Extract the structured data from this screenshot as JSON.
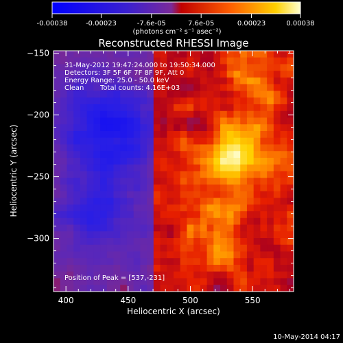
{
  "chart_data": {
    "type": "heatmap",
    "title": "Reconstructed RHESSI Image",
    "xlabel": "Heliocentric X (arcsec)",
    "ylabel": "Heliocentric Y (arcsec)",
    "xlim": [
      390,
      583
    ],
    "ylim": [
      -343,
      -148
    ],
    "x_ticks": [
      400,
      450,
      500,
      550
    ],
    "y_ticks": [
      -150,
      -200,
      -250,
      -300
    ],
    "colorbar": {
      "range": [
        -0.00038,
        0.00038
      ],
      "ticks": [
        "-0.00038",
        "-0.00023",
        "-7.6e-05",
        "7.6e-05",
        "0.00023",
        "0.00038"
      ],
      "tick_values": [
        -0.00038,
        -0.00023,
        -7.6e-05,
        7.6e-05,
        0.00023,
        0.00038
      ],
      "label": "(photons cm⁻² s⁻¹ asec⁻²)"
    },
    "annotations": {
      "time_range": "31-May-2012 19:47:24.000 to 19:50:34.000",
      "detectors": "Detectors: 3F 5F 6F 7F 8F 9F, Att 0",
      "energy_range": "Energy Range: 25.0 - 50.0 keV",
      "clean": "Clean",
      "total_counts": "Total counts: 4.16E+03",
      "peak": "Position of Peak = [537,-231]"
    },
    "peak_position": [
      537,
      -231
    ],
    "palette_colors": [
      "#0000ff",
      "#5a1ab4",
      "#7a2a9a",
      "#ff0000",
      "#ff8c00",
      "#ffff00",
      "#ffffff"
    ]
  },
  "footer": {
    "date": "10-May-2014 04:17"
  }
}
